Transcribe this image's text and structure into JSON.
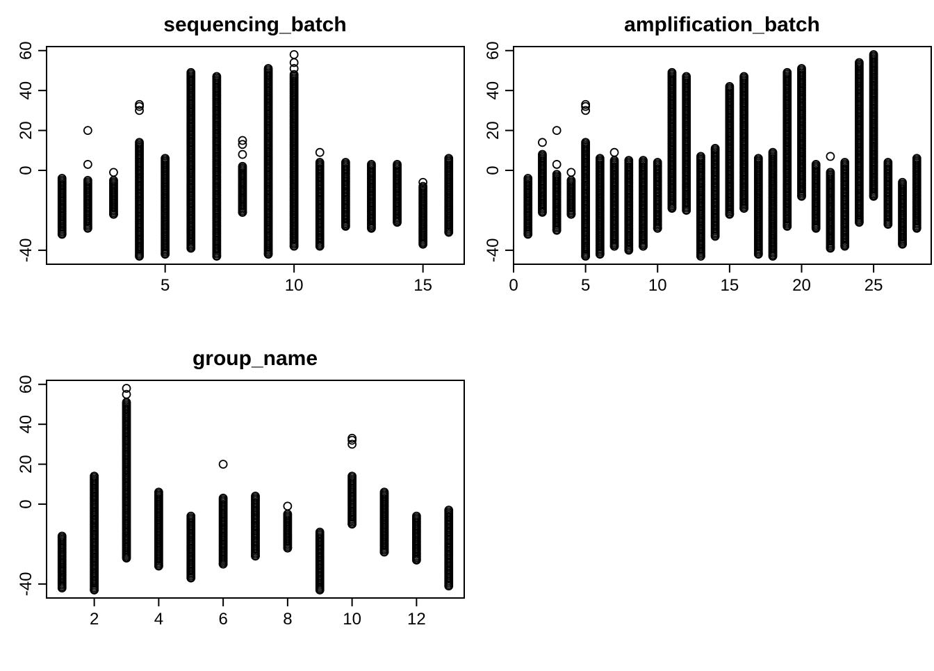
{
  "chart_data": [
    {
      "type": "scatter",
      "id": "sequencing_batch",
      "title": "sequencing_batch",
      "xlabel": "",
      "ylabel": "",
      "xlim": [
        0.4,
        16.6
      ],
      "ylim": [
        -47,
        62
      ],
      "xticks": [
        5,
        10,
        15
      ],
      "yticks": [
        -40,
        0,
        20,
        40,
        60
      ],
      "series": [
        {
          "columns": [
            {
              "x": 1,
              "min": -32,
              "max": -4,
              "out": []
            },
            {
              "x": 2,
              "min": -29,
              "max": -5,
              "out": [
                3,
                20
              ]
            },
            {
              "x": 3,
              "min": -22,
              "max": -5,
              "out": [
                -1
              ]
            },
            {
              "x": 4,
              "min": -43,
              "max": 14,
              "out": [
                30,
                32,
                33
              ]
            },
            {
              "x": 5,
              "min": -42,
              "max": 6,
              "out": []
            },
            {
              "x": 6,
              "min": -39,
              "max": 49,
              "out": []
            },
            {
              "x": 7,
              "min": -43,
              "max": 47,
              "out": []
            },
            {
              "x": 8,
              "min": -21,
              "max": 2,
              "out": [
                8,
                13,
                15
              ]
            },
            {
              "x": 9,
              "min": -42,
              "max": 51,
              "out": []
            },
            {
              "x": 10,
              "min": -38,
              "max": 48,
              "out": [
                51,
                54,
                58
              ]
            },
            {
              "x": 11,
              "min": -38,
              "max": 4,
              "out": [
                9
              ]
            },
            {
              "x": 12,
              "min": -28,
              "max": 4,
              "out": []
            },
            {
              "x": 13,
              "min": -29,
              "max": 3,
              "out": []
            },
            {
              "x": 14,
              "min": -26,
              "max": 3,
              "out": []
            },
            {
              "x": 15,
              "min": -37,
              "max": -8,
              "out": [
                -6
              ]
            },
            {
              "x": 16,
              "min": -31,
              "max": 6,
              "out": []
            }
          ]
        }
      ]
    },
    {
      "type": "scatter",
      "id": "amplification_batch",
      "title": "amplification_batch",
      "xlabel": "",
      "ylabel": "",
      "xlim": [
        0,
        29
      ],
      "ylim": [
        -47,
        62
      ],
      "xticks": [
        0,
        5,
        10,
        15,
        20,
        25
      ],
      "yticks": [
        -40,
        0,
        20,
        40,
        60
      ],
      "series": [
        {
          "columns": [
            {
              "x": 1,
              "min": -32,
              "max": -4,
              "out": []
            },
            {
              "x": 2,
              "min": -21,
              "max": 8,
              "out": [
                14
              ]
            },
            {
              "x": 3,
              "min": -30,
              "max": -2,
              "out": [
                3,
                20
              ]
            },
            {
              "x": 4,
              "min": -22,
              "max": -5,
              "out": [
                -1
              ]
            },
            {
              "x": 5,
              "min": -43,
              "max": 14,
              "out": [
                30,
                32,
                33
              ]
            },
            {
              "x": 6,
              "min": -42,
              "max": 6,
              "out": []
            },
            {
              "x": 7,
              "min": -38,
              "max": 5,
              "out": [
                9
              ]
            },
            {
              "x": 8,
              "min": -40,
              "max": 5,
              "out": []
            },
            {
              "x": 9,
              "min": -38,
              "max": 5,
              "out": []
            },
            {
              "x": 10,
              "min": -29,
              "max": 4,
              "out": []
            },
            {
              "x": 11,
              "min": -19,
              "max": 49,
              "out": []
            },
            {
              "x": 12,
              "min": -20,
              "max": 47,
              "out": []
            },
            {
              "x": 13,
              "min": -43,
              "max": 7,
              "out": []
            },
            {
              "x": 14,
              "min": -33,
              "max": 11,
              "out": []
            },
            {
              "x": 15,
              "min": -22,
              "max": 42,
              "out": []
            },
            {
              "x": 16,
              "min": -19,
              "max": 47,
              "out": []
            },
            {
              "x": 17,
              "min": -42,
              "max": 6,
              "out": []
            },
            {
              "x": 18,
              "min": -43,
              "max": 9,
              "out": []
            },
            {
              "x": 19,
              "min": -28,
              "max": 49,
              "out": []
            },
            {
              "x": 20,
              "min": -13,
              "max": 51,
              "out": []
            },
            {
              "x": 21,
              "min": -29,
              "max": 3,
              "out": []
            },
            {
              "x": 22,
              "min": -39,
              "max": -1,
              "out": [
                7
              ]
            },
            {
              "x": 23,
              "min": -38,
              "max": 4,
              "out": []
            },
            {
              "x": 24,
              "min": -26,
              "max": 54,
              "out": []
            },
            {
              "x": 25,
              "min": -13,
              "max": 58,
              "out": []
            },
            {
              "x": 26,
              "min": -27,
              "max": 4,
              "out": []
            },
            {
              "x": 27,
              "min": -37,
              "max": -6,
              "out": []
            },
            {
              "x": 28,
              "min": -29,
              "max": 6,
              "out": []
            }
          ]
        }
      ]
    },
    {
      "type": "scatter",
      "id": "group_name",
      "title": "group_name",
      "xlabel": "",
      "ylabel": "",
      "xlim": [
        0.52,
        13.48
      ],
      "ylim": [
        -47,
        62
      ],
      "xticks": [
        2,
        4,
        6,
        8,
        10,
        12
      ],
      "yticks": [
        -40,
        0,
        20,
        40,
        60
      ],
      "series": [
        {
          "columns": [
            {
              "x": 1,
              "min": -42,
              "max": -16,
              "out": []
            },
            {
              "x": 2,
              "min": -43,
              "max": 14,
              "out": []
            },
            {
              "x": 3,
              "min": -27,
              "max": 51,
              "out": [
                55,
                58
              ]
            },
            {
              "x": 4,
              "min": -31,
              "max": 6,
              "out": []
            },
            {
              "x": 5,
              "min": -37,
              "max": -6,
              "out": []
            },
            {
              "x": 6,
              "min": -30,
              "max": 3,
              "out": [
                20
              ]
            },
            {
              "x": 7,
              "min": -26,
              "max": 4,
              "out": []
            },
            {
              "x": 8,
              "min": -22,
              "max": -5,
              "out": [
                -1
              ]
            },
            {
              "x": 9,
              "min": -43,
              "max": -14,
              "out": []
            },
            {
              "x": 10,
              "min": -10,
              "max": 14,
              "out": [
                30,
                32,
                33
              ]
            },
            {
              "x": 11,
              "min": -24,
              "max": 6,
              "out": []
            },
            {
              "x": 12,
              "min": -28,
              "max": -6,
              "out": []
            },
            {
              "x": 13,
              "min": -41,
              "max": -3,
              "out": []
            }
          ]
        }
      ]
    }
  ]
}
